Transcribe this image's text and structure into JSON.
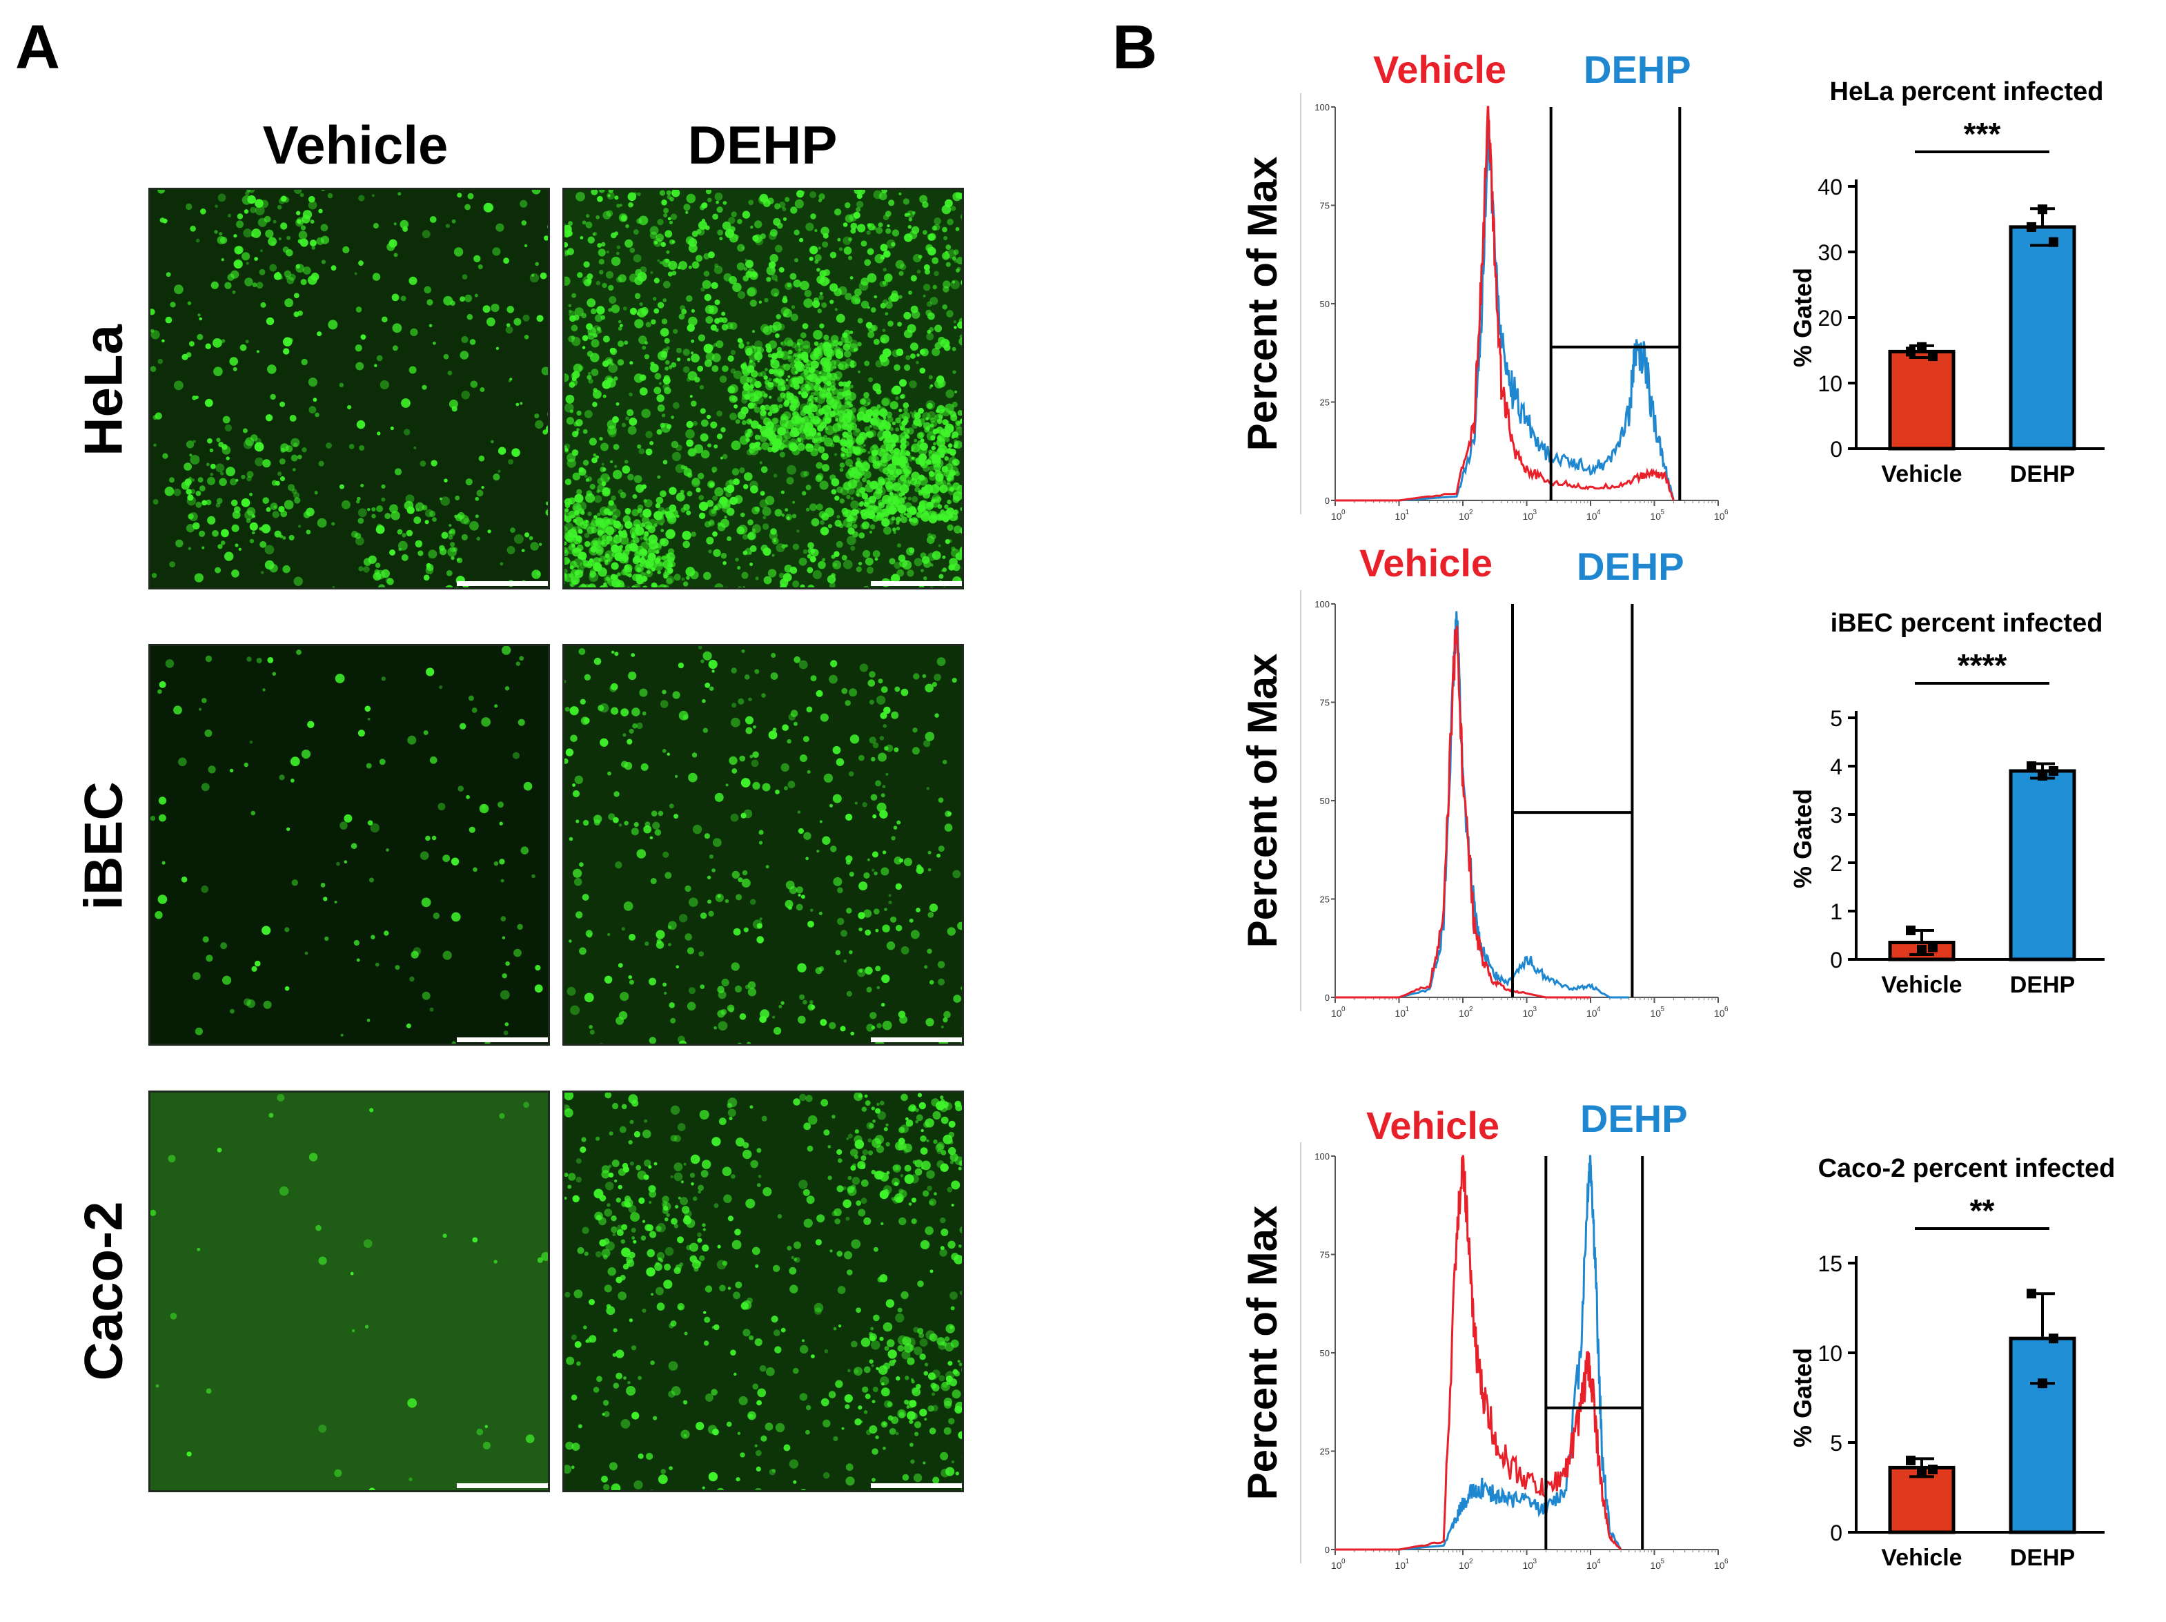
{
  "panels": {
    "a": {
      "letter": "A",
      "columns": [
        "Vehicle",
        "DEHP"
      ],
      "rows": [
        "HeLa",
        "iBEC",
        "Caco-2"
      ],
      "tile_colors": {
        "bg_dim": "#0a2a06",
        "bg_iBEC": "#081f04",
        "bg_caco": "#1e5a14",
        "cell": "#3ff52a"
      }
    },
    "b": {
      "letter": "B",
      "legend": {
        "vehicle": "Vehicle",
        "dehp": "DEHP"
      },
      "ylabel": "Percent of Max",
      "yticks": [
        "0",
        "25",
        "50",
        "75",
        "100"
      ],
      "xticks": [
        "10",
        "10",
        "10",
        "10",
        "10",
        "10",
        "10"
      ],
      "xtick_exponents": [
        "0",
        "1",
        "2",
        "3",
        "4",
        "5",
        "6"
      ]
    }
  },
  "colors": {
    "vehicle": "#e8202a",
    "dehp": "#1e87d0",
    "bar_vehicle": "#e03a1e",
    "bar_dehp": "#1f8fd6"
  },
  "chart_data": [
    {
      "type": "line",
      "title": "",
      "ylabel": "Percent of Max",
      "x_scale": "log",
      "xlim": [
        1,
        1000000
      ],
      "ylim": [
        0,
        100
      ],
      "series": [
        {
          "name": "Vehicle",
          "x": [
            1,
            10,
            80,
            150,
            200,
            250,
            300,
            400,
            600,
            1000,
            2000,
            5000,
            10000,
            30000,
            60000,
            100000,
            150000,
            200000
          ],
          "y": [
            0,
            0,
            2,
            20,
            60,
            100,
            70,
            30,
            14,
            8,
            5,
            4,
            3,
            4,
            6,
            7,
            6,
            0
          ]
        },
        {
          "name": "DEHP",
          "x": [
            1,
            10,
            80,
            150,
            200,
            250,
            300,
            400,
            600,
            1000,
            2000,
            5000,
            10000,
            20000,
            40000,
            50000,
            70000,
            100000,
            150000,
            200000
          ],
          "y": [
            0,
            0,
            1,
            15,
            50,
            95,
            70,
            40,
            28,
            20,
            12,
            10,
            8,
            10,
            22,
            38,
            36,
            20,
            8,
            0
          ]
        }
      ]
    },
    {
      "type": "bar",
      "title": "HeLa percent infected",
      "ylabel": "% Gated",
      "categories": [
        "Vehicle",
        "DEHP"
      ],
      "ylim": [
        0,
        40
      ],
      "yticks": [
        "0",
        "10",
        "20",
        "30",
        "40"
      ],
      "values": [
        14.8,
        33.8
      ],
      "error": [
        0.9,
        2.8
      ],
      "points": [
        [
          14.8,
          15.5,
          14.1
        ],
        [
          33.8,
          36.5,
          31.5
        ]
      ],
      "significance": "***"
    },
    {
      "type": "line",
      "title": "",
      "ylabel": "Percent of Max",
      "x_scale": "log",
      "xlim": [
        1,
        1000000
      ],
      "ylim": [
        0,
        100
      ],
      "series": [
        {
          "name": "Vehicle",
          "x": [
            1,
            10,
            30,
            50,
            70,
            80,
            100,
            150,
            200,
            300,
            500,
            1000,
            2000,
            5000,
            10000
          ],
          "y": [
            0,
            0,
            3,
            20,
            80,
            95,
            55,
            18,
            10,
            4,
            2,
            1,
            0,
            0,
            0
          ]
        },
        {
          "name": "DEHP",
          "x": [
            1,
            10,
            30,
            50,
            70,
            80,
            100,
            150,
            200,
            300,
            500,
            1000,
            2000,
            5000,
            10000,
            20000,
            40000
          ],
          "y": [
            0,
            0,
            2,
            18,
            78,
            100,
            55,
            22,
            12,
            6,
            4,
            10,
            5,
            2,
            3,
            0,
            0
          ]
        }
      ]
    },
    {
      "type": "bar",
      "title": "iBEC percent infected",
      "ylabel": "% Gated",
      "categories": [
        "Vehicle",
        "DEHP"
      ],
      "ylim": [
        0,
        5
      ],
      "yticks": [
        "0",
        "1",
        "2",
        "3",
        "4",
        "5"
      ],
      "values": [
        0.35,
        3.9
      ],
      "error": [
        0.25,
        0.15
      ],
      "points": [
        [
          0.6,
          0.2,
          0.25
        ],
        [
          4.0,
          3.8,
          3.9
        ]
      ],
      "significance": "****"
    },
    {
      "type": "line",
      "title": "",
      "ylabel": "Percent of Max",
      "x_scale": "log",
      "xlim": [
        1,
        1000000
      ],
      "ylim": [
        0,
        100
      ],
      "series": [
        {
          "name": "Vehicle",
          "x": [
            1,
            10,
            50,
            80,
            100,
            120,
            150,
            200,
            300,
            500,
            1000,
            2000,
            4000,
            7000,
            9000,
            11000,
            15000,
            20000,
            30000
          ],
          "y": [
            0,
            0,
            2,
            80,
            100,
            80,
            55,
            40,
            30,
            22,
            18,
            15,
            20,
            35,
            48,
            40,
            15,
            3,
            0
          ]
        },
        {
          "name": "DEHP",
          "x": [
            1,
            10,
            50,
            80,
            100,
            150,
            200,
            300,
            500,
            1000,
            2000,
            4000,
            7000,
            9000,
            10000,
            12000,
            15000,
            20000,
            30000
          ],
          "y": [
            0,
            0,
            1,
            8,
            12,
            15,
            16,
            14,
            13,
            12,
            10,
            15,
            50,
            90,
            100,
            70,
            25,
            5,
            0
          ]
        }
      ]
    },
    {
      "type": "bar",
      "title": "Caco-2 percent infected",
      "ylabel": "% Gated",
      "categories": [
        "Vehicle",
        "DEHP"
      ],
      "ylim": [
        0,
        15
      ],
      "yticks": [
        "0",
        "5",
        "10",
        "15"
      ],
      "values": [
        3.6,
        10.8
      ],
      "error": [
        0.5,
        2.5
      ],
      "points": [
        [
          4.0,
          3.3,
          3.5
        ],
        [
          13.3,
          8.3,
          10.8
        ]
      ],
      "significance": "**"
    }
  ]
}
